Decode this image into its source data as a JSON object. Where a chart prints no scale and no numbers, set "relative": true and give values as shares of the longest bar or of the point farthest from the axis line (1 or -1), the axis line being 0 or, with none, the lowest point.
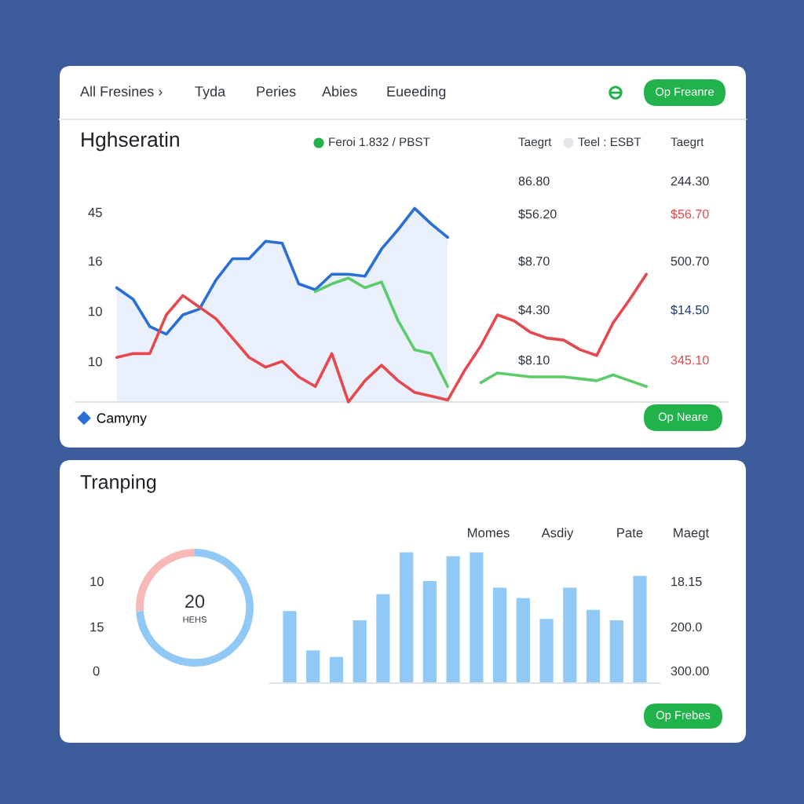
{
  "chart_data": [
    {
      "type": "other",
      "annotations": [
        "All Fresines ›",
        "Tyda",
        "Peries",
        "Abies",
        "Eueeding",
        "Op Freanre"
      ]
    },
    {
      "type": "line",
      "title": "Hghseratin",
      "relative": true,
      "categories": [
        null,
        null,
        null,
        null,
        null,
        null,
        null,
        null,
        null,
        null,
        null,
        null,
        null,
        null,
        null,
        null,
        null,
        null,
        null,
        null,
        null,
        null,
        null,
        null,
        null,
        null,
        null,
        null,
        null,
        null,
        null,
        null,
        null
      ],
      "series": [
        {
          "name": "Camyny",
          "type": "area",
          "color": "#2a6fd6",
          "values": [
            0.59,
            0.53,
            0.39,
            0.35,
            0.45,
            0.48,
            0.63,
            0.74,
            0.74,
            0.83,
            0.82,
            0.61,
            0.58,
            0.66,
            0.66,
            0.65,
            0.79,
            0.89,
            1.0,
            0.92,
            0.85,
            null,
            null,
            null,
            null,
            null,
            null,
            null,
            null,
            null,
            null,
            null,
            null
          ]
        },
        {
          "type": "line",
          "color": "#e5484d",
          "values": [
            0.23,
            0.25,
            0.25,
            0.45,
            0.55,
            0.49,
            0.43,
            0.33,
            0.23,
            0.18,
            0.21,
            0.13,
            0.08,
            0.25,
            0,
            0.11,
            0.19,
            0.11,
            0.05,
            0.03,
            0.01,
            0.16,
            0.29,
            0.45,
            0.42,
            0.36,
            0.33,
            0.32,
            0.27,
            0.24,
            0.41,
            0.53,
            0.66
          ]
        },
        {
          "type": "line",
          "color": "#5ccb6a",
          "values": [
            null,
            null,
            null,
            null,
            null,
            null,
            null,
            null,
            null,
            null,
            null,
            null,
            0.57,
            0.61,
            0.64,
            0.59,
            0.62,
            0.42,
            0.27,
            0.25,
            0.08,
            null,
            0.1,
            0.15,
            0.14,
            0.13,
            0.13,
            0.13,
            0.12,
            0.11,
            0.14,
            0.11,
            0.08
          ]
        }
      ],
      "legend": "bottom left",
      "annotations": [
        "45",
        "16",
        "10",
        "10",
        "Feroi 1.832 / PBST",
        "Taegrt",
        "Teel : ESBT",
        "Taegrt",
        "86.80",
        "$56.20",
        "$8.70",
        "$4.30",
        "$8.10",
        "244.30",
        "$56.70",
        "500.70",
        "$14.50",
        "345.10",
        "Op Neare"
      ]
    },
    {
      "type": "donut",
      "title": "Tranping",
      "categories": [
        null,
        null
      ],
      "values": [
        74,
        26
      ],
      "colors": [
        "#90c8f6",
        "#f8b8b8"
      ],
      "annotations": [
        "20",
        "HEHS"
      ]
    },
    {
      "type": "bar",
      "relative": true,
      "categories": [
        null,
        null,
        null,
        null,
        null,
        null,
        null,
        null,
        null,
        null,
        null,
        null,
        null,
        null,
        null,
        null
      ],
      "values": [
        0.55,
        0.25,
        0.2,
        0.48,
        0.68,
        1.0,
        0.78,
        0.97,
        1.0,
        0.73,
        0.65,
        0.49,
        0.73,
        0.56,
        0.48,
        0.82
      ],
      "color": "#90c8f6"
    },
    {
      "type": "other",
      "annotations": [
        "10",
        "15",
        "0",
        "Momes",
        "Asdiy",
        "Pate",
        "Maegt",
        "18.15",
        "200.0",
        "300.00",
        "Op Frebes"
      ]
    }
  ]
}
